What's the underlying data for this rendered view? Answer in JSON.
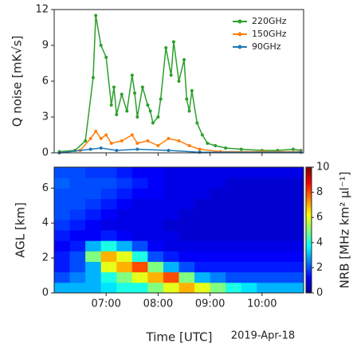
{
  "chart_data": [
    {
      "type": "line",
      "ylabel": "Q noise [mK√s]",
      "xlim": [
        6.0,
        10.8
      ],
      "xticks": [
        7,
        8,
        9,
        10
      ],
      "ylim": [
        0,
        12
      ],
      "yticks": [
        0,
        3,
        6,
        9,
        12
      ],
      "legend": "upper right",
      "series": [
        {
          "name": "220GHz",
          "color": "#2ca02c",
          "x": [
            6.1,
            6.4,
            6.6,
            6.75,
            6.8,
            6.9,
            7.0,
            7.1,
            7.15,
            7.2,
            7.3,
            7.4,
            7.5,
            7.55,
            7.6,
            7.7,
            7.8,
            7.85,
            7.9,
            8.0,
            8.05,
            8.15,
            8.25,
            8.3,
            8.4,
            8.5,
            8.55,
            8.6,
            8.65,
            8.75,
            8.85,
            8.95,
            9.1,
            9.3,
            9.6,
            10.0,
            10.3,
            10.6,
            10.75
          ],
          "values": [
            0.1,
            0.2,
            1.0,
            6.3,
            11.5,
            9.0,
            8.0,
            4.0,
            5.5,
            3.2,
            4.9,
            3.5,
            6.5,
            5.0,
            3.0,
            5.5,
            4.0,
            3.5,
            2.5,
            3.0,
            4.5,
            8.8,
            6.5,
            9.3,
            6.0,
            7.8,
            4.5,
            3.5,
            5.2,
            2.5,
            1.5,
            0.8,
            0.6,
            0.4,
            0.3,
            0.2,
            0.2,
            0.3,
            0.2
          ]
        },
        {
          "name": "150GHz",
          "color": "#ff7f0e",
          "x": [
            6.1,
            6.5,
            6.7,
            6.8,
            6.9,
            7.0,
            7.1,
            7.3,
            7.5,
            7.6,
            7.8,
            8.0,
            8.2,
            8.4,
            8.6,
            8.8,
            9.2,
            10.0,
            10.75
          ],
          "values": [
            0,
            0.2,
            1.2,
            1.8,
            1.2,
            1.5,
            0.8,
            1.0,
            1.5,
            0.8,
            1.0,
            0.6,
            1.2,
            1.0,
            0.6,
            0.3,
            0.1,
            0.1,
            0.1
          ]
        },
        {
          "name": "90GHz",
          "color": "#1f77b4",
          "x": [
            6.1,
            6.7,
            6.9,
            7.2,
            7.6,
            8.2,
            8.8,
            10.75
          ],
          "values": [
            0,
            0.3,
            0.4,
            0.2,
            0.3,
            0.2,
            0.05,
            0.05
          ]
        }
      ]
    },
    {
      "type": "heatmap",
      "ylabel": "AGL [km]",
      "xlabel": "Time [UTC]",
      "annotation": "2019-Apr-18",
      "colorbar_label": "NRB [MHz km² µl⁻¹]",
      "colormap": "jet",
      "clim": [
        0,
        10
      ],
      "cticks": [
        0,
        2,
        4,
        6,
        8,
        10
      ],
      "xlim": [
        6.0,
        10.8
      ],
      "xticks": [
        {
          "value": 7,
          "label": "07:00"
        },
        {
          "value": 8,
          "label": "08:00"
        },
        {
          "value": 9,
          "label": "09:00"
        },
        {
          "value": 10,
          "label": "10:00"
        }
      ],
      "ylim": [
        0,
        7.2
      ],
      "yticks": [
        0,
        2,
        4,
        6
      ],
      "x_edges": [
        6.0,
        6.3,
        6.6,
        6.9,
        7.2,
        7.5,
        7.8,
        8.1,
        8.4,
        8.7,
        9.0,
        9.3,
        9.6,
        9.9,
        10.2,
        10.5,
        10.8
      ],
      "y_edges": [
        0,
        0.6,
        1.2,
        1.8,
        2.4,
        3.0,
        3.6,
        4.2,
        4.8,
        5.4,
        6.0,
        6.6,
        7.2
      ],
      "z": [
        [
          3,
          3,
          3,
          3.5,
          4,
          4,
          5,
          6,
          7,
          6,
          5,
          4,
          3.5,
          3,
          3,
          3
        ],
        [
          2,
          2.5,
          3,
          4,
          5,
          6,
          7,
          8,
          5,
          3,
          2.5,
          2,
          2,
          2,
          2,
          2
        ],
        [
          1.5,
          2,
          3,
          6,
          7,
          8,
          5,
          3,
          2,
          1.5,
          1.5,
          1.5,
          1.5,
          1.5,
          1.5,
          1.5
        ],
        [
          1.5,
          2,
          5,
          7,
          6,
          4,
          2,
          1.5,
          1.2,
          1.2,
          1.2,
          1.2,
          1.2,
          1.2,
          1.2,
          1.2
        ],
        [
          1.2,
          1.5,
          3,
          4,
          3,
          2,
          1.2,
          1,
          1,
          1,
          1,
          1,
          1,
          1,
          1,
          1
        ],
        [
          1.5,
          1.2,
          1.2,
          1.5,
          1.2,
          1,
          1,
          1,
          0.8,
          0.8,
          0.8,
          0.8,
          0.8,
          0.8,
          0.8,
          0.8
        ],
        [
          1.8,
          1.5,
          1.2,
          1,
          1,
          1,
          1,
          0.8,
          0.8,
          0.8,
          0.8,
          0.8,
          0.8,
          0.8,
          0.8,
          0.8
        ],
        [
          2,
          1.8,
          1.5,
          1.2,
          1,
          1,
          1,
          1,
          0.8,
          0.8,
          0.8,
          0.8,
          0.8,
          0.8,
          0.8,
          0.8
        ],
        [
          2,
          2,
          1.8,
          1.5,
          1.2,
          1,
          1,
          1,
          1,
          0.8,
          0.8,
          0.8,
          0.8,
          0.8,
          0.8,
          0.8
        ],
        [
          2,
          2,
          2,
          1.8,
          1.5,
          1.2,
          1.2,
          1,
          1,
          1,
          0.8,
          0.8,
          0.8,
          0.8,
          0.8,
          0.8
        ],
        [
          2.2,
          2,
          2,
          2,
          1.8,
          1.5,
          1.2,
          1,
          1,
          1,
          1,
          0.8,
          0.8,
          0.8,
          0.8,
          0.8
        ],
        [
          2,
          2,
          1.8,
          1.8,
          1.5,
          1.2,
          1.2,
          1,
          1,
          1,
          1,
          1,
          1,
          1,
          1,
          1
        ]
      ]
    }
  ]
}
